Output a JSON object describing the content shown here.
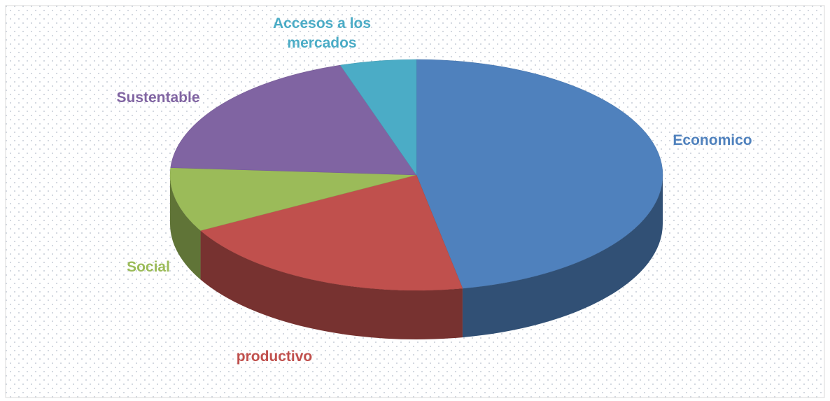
{
  "chart_data": {
    "type": "pie3d",
    "categories": [
      "Economico",
      "productivo",
      "Social",
      "Sustentable",
      "Accesos a los mercados"
    ],
    "values": [
      47,
      20,
      9,
      19,
      5
    ],
    "colors": [
      "#4f81bd",
      "#c0504d",
      "#9bbb59",
      "#8064a2",
      "#4bacc6"
    ]
  }
}
